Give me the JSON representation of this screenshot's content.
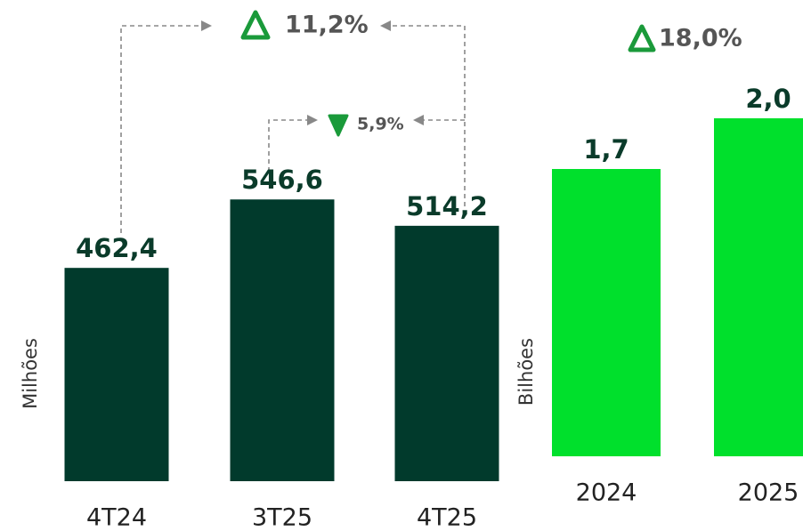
{
  "chart_data": [
    {
      "type": "bar",
      "y_label": "Milhões",
      "categories": [
        "4T24",
        "3T25",
        "4T25"
      ],
      "values": [
        462.4,
        546.6,
        514.2
      ],
      "value_labels": [
        "462,4",
        "546,6",
        "514,2"
      ],
      "color": "#013a2c",
      "ylim": [
        200,
        560
      ],
      "annotations": [
        "11,2%",
        "5,9%"
      ]
    },
    {
      "type": "bar",
      "y_label": "Bilhões",
      "categories": [
        "2024",
        "2025"
      ],
      "values": [
        1.7,
        2.0
      ],
      "value_labels": [
        "1,7",
        "2,0"
      ],
      "color": "#00e02c",
      "ylim": [
        0,
        2.1
      ],
      "annotations": [
        "18,0%"
      ]
    }
  ]
}
